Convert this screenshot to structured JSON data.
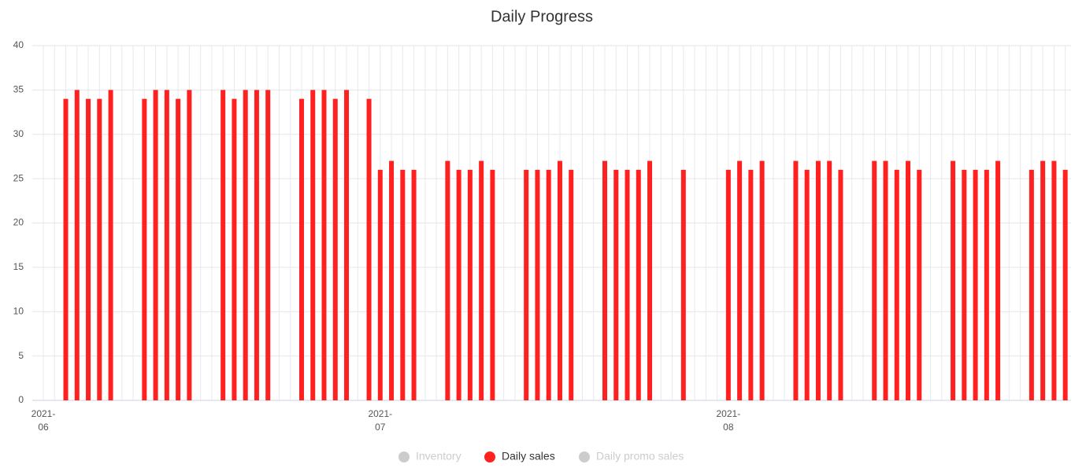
{
  "chart_data": {
    "type": "bar",
    "title": "Daily Progress",
    "categories": [
      "2021-06",
      null,
      null,
      null,
      null,
      null,
      null,
      null,
      null,
      null,
      null,
      null,
      null,
      null,
      null,
      null,
      null,
      null,
      null,
      null,
      null,
      null,
      null,
      null,
      null,
      null,
      null,
      null,
      null,
      null,
      "2021-07",
      null,
      null,
      null,
      null,
      null,
      null,
      null,
      null,
      null,
      null,
      null,
      null,
      null,
      null,
      null,
      null,
      null,
      null,
      null,
      null,
      null,
      null,
      null,
      null,
      null,
      null,
      null,
      null,
      null,
      null,
      "2021-08",
      null,
      null,
      null,
      null,
      null,
      null,
      null,
      null,
      null,
      null,
      null,
      null,
      null,
      null,
      null,
      null,
      null,
      null,
      null,
      null,
      null,
      null,
      null,
      null,
      null,
      null,
      null,
      null,
      null,
      null
    ],
    "series": [
      {
        "name": "Inventory",
        "color": "#cccccc",
        "visible": false
      },
      {
        "name": "Daily sales",
        "color": "#ff2020",
        "visible": true,
        "values": [
          null,
          null,
          34,
          35,
          34,
          34,
          35,
          null,
          null,
          34,
          35,
          35,
          34,
          35,
          null,
          null,
          35,
          34,
          35,
          35,
          35,
          null,
          null,
          34,
          35,
          35,
          34,
          35,
          null,
          34,
          26,
          27,
          26,
          26,
          null,
          null,
          27,
          26,
          26,
          27,
          26,
          null,
          null,
          26,
          26,
          26,
          27,
          26,
          null,
          null,
          27,
          26,
          26,
          26,
          27,
          null,
          null,
          26,
          null,
          null,
          null,
          26,
          27,
          26,
          27,
          null,
          null,
          27,
          26,
          27,
          27,
          26,
          null,
          null,
          27,
          27,
          26,
          27,
          26,
          null,
          null,
          27,
          26,
          26,
          26,
          27,
          null,
          null,
          26,
          27,
          27,
          26
        ]
      },
      {
        "name": "Daily promo sales",
        "color": "#cccccc",
        "visible": false
      }
    ],
    "ylim": [
      0,
      40
    ],
    "yticks": [
      0,
      5,
      10,
      15,
      20,
      25,
      30,
      35,
      40
    ],
    "grid": true
  }
}
